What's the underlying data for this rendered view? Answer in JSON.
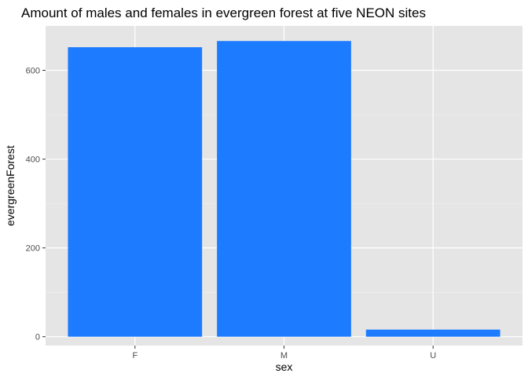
{
  "chart_data": {
    "type": "bar",
    "title": "Amount of males and females in evergreen forest at five NEON sites",
    "xlabel": "sex",
    "ylabel": "evergreenForest",
    "categories": [
      "F",
      "M",
      "U"
    ],
    "values": [
      652,
      666,
      16
    ],
    "ylim": [
      -20,
      700
    ],
    "yticks": [
      0,
      200,
      400,
      600
    ],
    "grid": true,
    "colors": {
      "bar": "#1c7bff",
      "panel": "#e5e5e5",
      "grid_major": "#ffffff",
      "grid_minor": "#f2f2f2"
    }
  }
}
